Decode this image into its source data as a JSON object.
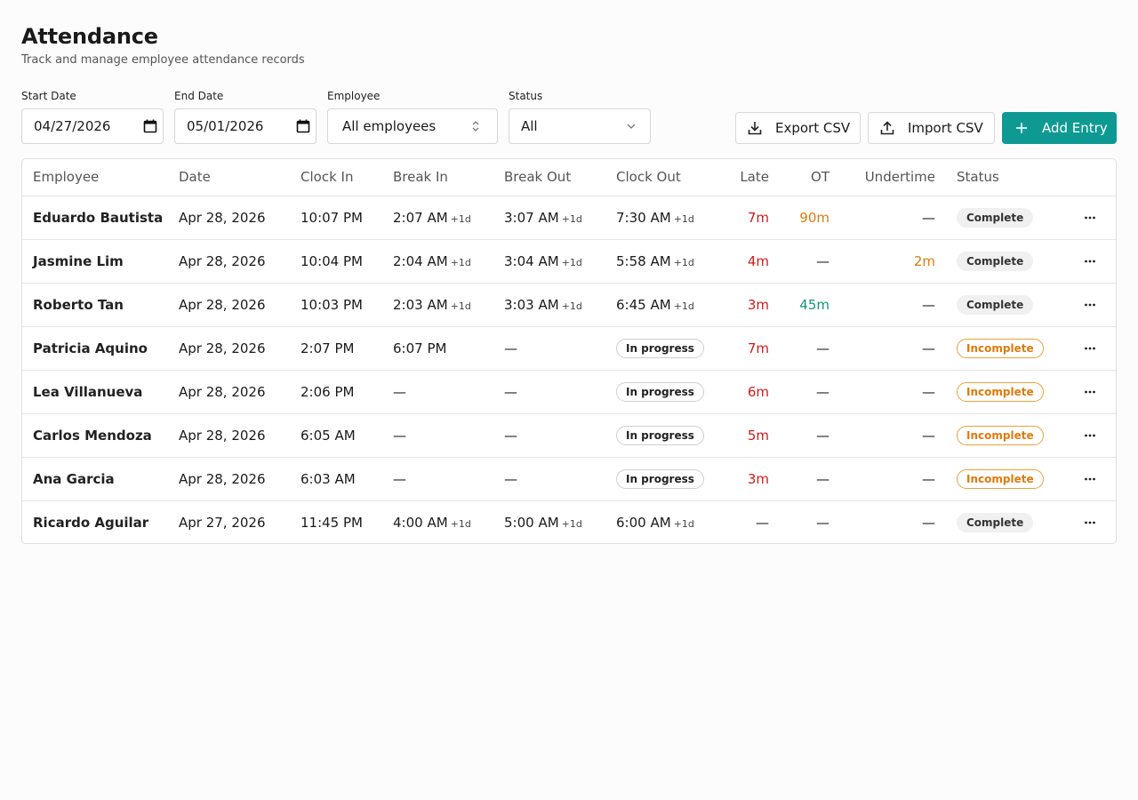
{
  "header": {
    "title": "Attendance",
    "subtitle": "Track and manage employee attendance records"
  },
  "filters": {
    "start_date_label": "Start Date",
    "start_date_value": "04/27/2026",
    "end_date_label": "End Date",
    "end_date_value": "05/01/2026",
    "employee_label": "Employee",
    "employee_value": "All employees",
    "status_label": "Status",
    "status_value": "All"
  },
  "actions": {
    "export_label": "Export CSV",
    "import_label": "Import CSV",
    "add_label": "Add Entry",
    "accent": "#0e9a93"
  },
  "table": {
    "columns": [
      "Employee",
      "Date",
      "Clock In",
      "Break In",
      "Break Out",
      "Clock Out",
      "Late",
      "OT",
      "Undertime",
      "Status"
    ],
    "rows": [
      {
        "employee": "Eduardo Bautista",
        "date": "Apr 28, 2026",
        "clock_in": "10:07 PM",
        "break_in": "2:07 AM",
        "break_in_plus": "+1d",
        "break_out": "3:07 AM",
        "break_out_plus": "+1d",
        "clock_out": "7:30 AM",
        "clock_out_plus": "+1d",
        "clock_out_pill": "",
        "late": "7m",
        "late_color": "red",
        "ot": "90m",
        "ot_color": "orange",
        "undertime": "—",
        "undertime_color": "",
        "status": "Complete",
        "status_kind": "complete"
      },
      {
        "employee": "Jasmine Lim",
        "date": "Apr 28, 2026",
        "clock_in": "10:04 PM",
        "break_in": "2:04 AM",
        "break_in_plus": "+1d",
        "break_out": "3:04 AM",
        "break_out_plus": "+1d",
        "clock_out": "5:58 AM",
        "clock_out_plus": "+1d",
        "clock_out_pill": "",
        "late": "4m",
        "late_color": "red",
        "ot": "—",
        "ot_color": "",
        "undertime": "2m",
        "undertime_color": "orange",
        "status": "Complete",
        "status_kind": "complete"
      },
      {
        "employee": "Roberto Tan",
        "date": "Apr 28, 2026",
        "clock_in": "10:03 PM",
        "break_in": "2:03 AM",
        "break_in_plus": "+1d",
        "break_out": "3:03 AM",
        "break_out_plus": "+1d",
        "clock_out": "6:45 AM",
        "clock_out_plus": "+1d",
        "clock_out_pill": "",
        "late": "3m",
        "late_color": "red",
        "ot": "45m",
        "ot_color": "green",
        "undertime": "—",
        "undertime_color": "",
        "status": "Complete",
        "status_kind": "complete"
      },
      {
        "employee": "Patricia Aquino",
        "date": "Apr 28, 2026",
        "clock_in": "2:07 PM",
        "break_in": "6:07 PM",
        "break_in_plus": "",
        "break_out": "—",
        "break_out_plus": "",
        "clock_out": "",
        "clock_out_plus": "",
        "clock_out_pill": "In progress",
        "late": "7m",
        "late_color": "red",
        "ot": "—",
        "ot_color": "",
        "undertime": "—",
        "undertime_color": "",
        "status": "Incomplete",
        "status_kind": "incomplete"
      },
      {
        "employee": "Lea Villanueva",
        "date": "Apr 28, 2026",
        "clock_in": "2:06 PM",
        "break_in": "—",
        "break_in_plus": "",
        "break_out": "—",
        "break_out_plus": "",
        "clock_out": "",
        "clock_out_plus": "",
        "clock_out_pill": "In progress",
        "late": "6m",
        "late_color": "red",
        "ot": "—",
        "ot_color": "",
        "undertime": "—",
        "undertime_color": "",
        "status": "Incomplete",
        "status_kind": "incomplete"
      },
      {
        "employee": "Carlos Mendoza",
        "date": "Apr 28, 2026",
        "clock_in": "6:05 AM",
        "break_in": "—",
        "break_in_plus": "",
        "break_out": "—",
        "break_out_plus": "",
        "clock_out": "",
        "clock_out_plus": "",
        "clock_out_pill": "In progress",
        "late": "5m",
        "late_color": "red",
        "ot": "—",
        "ot_color": "",
        "undertime": "—",
        "undertime_color": "",
        "status": "Incomplete",
        "status_kind": "incomplete"
      },
      {
        "employee": "Ana Garcia",
        "date": "Apr 28, 2026",
        "clock_in": "6:03 AM",
        "break_in": "—",
        "break_in_plus": "",
        "break_out": "—",
        "break_out_plus": "",
        "clock_out": "",
        "clock_out_plus": "",
        "clock_out_pill": "In progress",
        "late": "3m",
        "late_color": "red",
        "ot": "—",
        "ot_color": "",
        "undertime": "—",
        "undertime_color": "",
        "status": "Incomplete",
        "status_kind": "incomplete"
      },
      {
        "employee": "Ricardo Aguilar",
        "date": "Apr 27, 2026",
        "clock_in": "11:45 PM",
        "break_in": "4:00 AM",
        "break_in_plus": "+1d",
        "break_out": "5:00 AM",
        "break_out_plus": "+1d",
        "clock_out": "6:00 AM",
        "clock_out_plus": "+1d",
        "clock_out_pill": "",
        "late": "—",
        "late_color": "",
        "ot": "—",
        "ot_color": "",
        "undertime": "—",
        "undertime_color": "",
        "status": "Complete",
        "status_kind": "complete"
      }
    ]
  }
}
